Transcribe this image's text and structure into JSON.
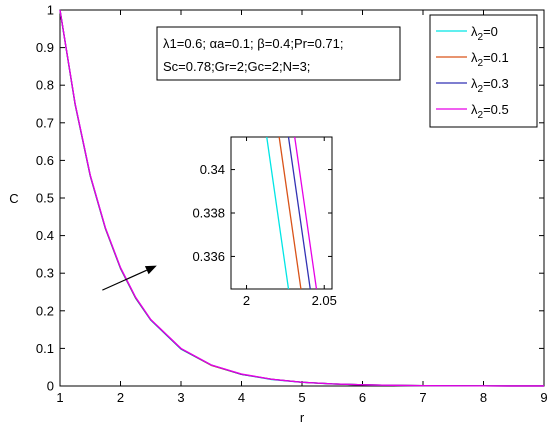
{
  "chart_data": [
    {
      "type": "line",
      "xlabel": "r",
      "ylabel": "C",
      "xlim": [
        1,
        9
      ],
      "ylim": [
        0,
        1
      ],
      "xticks": [
        "1",
        "2",
        "3",
        "4",
        "5",
        "6",
        "7",
        "8",
        "9"
      ],
      "yticks": [
        "0",
        "0.1",
        "0.2",
        "0.3",
        "0.4",
        "0.5",
        "0.6",
        "0.7",
        "0.8",
        "0.9",
        "1"
      ],
      "x": [
        1.0,
        1.25,
        1.5,
        1.75,
        2.0,
        2.25,
        2.5,
        3.0,
        3.5,
        4.0,
        4.5,
        5.0,
        5.5,
        6.0,
        6.5,
        7.0,
        7.5,
        8.0,
        8.5,
        9.0
      ],
      "series": [
        {
          "name": "λ2=0",
          "color": "#00e5e5",
          "values": [
            1.0,
            0.748,
            0.558,
            0.418,
            0.312,
            0.233,
            0.175,
            0.098,
            0.055,
            0.031,
            0.017,
            0.0098,
            0.0055,
            0.0031,
            0.0017,
            0.001,
            0.0005,
            0.0003,
            0.0002,
            0.0001
          ]
        },
        {
          "name": "λ2=0.1",
          "color": "#d95319",
          "values": [
            1.0,
            0.749,
            0.559,
            0.419,
            0.313,
            0.234,
            0.176,
            0.099,
            0.055,
            0.031,
            0.018,
            0.0099,
            0.0056,
            0.0031,
            0.0018,
            0.001,
            0.0006,
            0.0003,
            0.0002,
            0.0001
          ]
        },
        {
          "name": "λ2=0.3",
          "color": "#3232b4",
          "values": [
            1.0,
            0.75,
            0.56,
            0.42,
            0.314,
            0.235,
            0.176,
            0.099,
            0.056,
            0.031,
            0.018,
            0.01,
            0.0056,
            0.0032,
            0.0018,
            0.001,
            0.0006,
            0.0003,
            0.0002,
            0.0001
          ]
        },
        {
          "name": "λ2=0.5",
          "color": "#e600e6",
          "values": [
            1.0,
            0.751,
            0.561,
            0.421,
            0.315,
            0.236,
            0.177,
            0.1,
            0.056,
            0.032,
            0.018,
            0.01,
            0.0057,
            0.0032,
            0.0018,
            0.001,
            0.0006,
            0.0003,
            0.0002,
            0.0001
          ]
        }
      ],
      "legend": {
        "placement": "top-right"
      },
      "annotation": {
        "line1": "λ1=0.6; αa=0.1; β=0.4;Pr=0.71;",
        "line2": "Sc=0.78;Gr=2;Gc=2;N=3;"
      },
      "arrow": {
        "from": [
          1.7,
          0.255
        ],
        "to": [
          2.6,
          0.32
        ]
      }
    },
    {
      "type": "line",
      "role": "inset-zoom",
      "xlim": [
        1.99,
        2.055
      ],
      "ylim": [
        0.3345,
        0.3415
      ],
      "xticks": [
        "2",
        "2.05"
      ],
      "yticks": [
        "0.336",
        "0.338",
        "0.34"
      ],
      "ytick_values": [
        0.336,
        0.338,
        0.34
      ],
      "xtick_values": [
        2.0,
        2.05
      ],
      "series": [
        {
          "name": "λ2=0",
          "color": "#00e5e5",
          "x": [
            2.013,
            2.027
          ],
          "values": [
            0.3415,
            0.3345
          ]
        },
        {
          "name": "λ2=0.1",
          "color": "#d95319",
          "x": [
            2.021,
            2.035
          ],
          "values": [
            0.3415,
            0.3345
          ]
        },
        {
          "name": "λ2=0.3",
          "color": "#3232b4",
          "x": [
            2.027,
            2.041
          ],
          "values": [
            0.3415,
            0.3345
          ]
        },
        {
          "name": "λ2=0.5",
          "color": "#e600e6",
          "x": [
            2.031,
            2.045
          ],
          "values": [
            0.3415,
            0.3345
          ]
        }
      ]
    }
  ]
}
